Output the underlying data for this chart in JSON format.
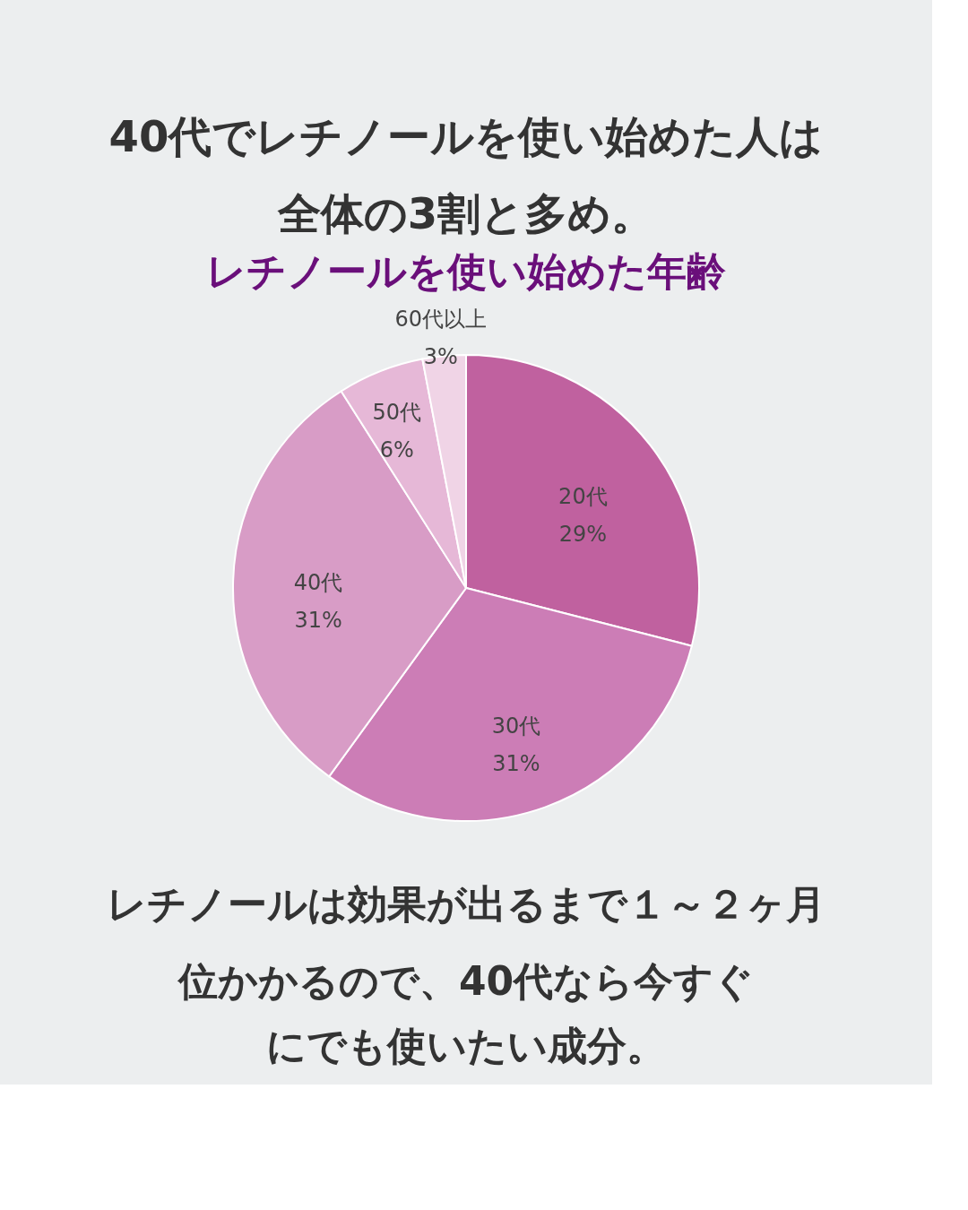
{
  "chart_data": {
    "type": "pie",
    "title": "40代でレチノールを使い始めた人は全体の3割と多め。",
    "subtitle": "レチノールを使い始めた年齢",
    "categories": [
      "20代",
      "30代",
      "40代",
      "50代",
      "60代以上"
    ],
    "values": [
      29,
      31,
      31,
      6,
      3
    ],
    "value_labels": [
      "29%",
      "31%",
      "31%",
      "6%",
      "3%"
    ],
    "colors": [
      "#c0619f",
      "#cc7db6",
      "#d89cc6",
      "#e6b8d7",
      "#f0d4e6"
    ],
    "annotations": [
      "レチノールは効果が出るまで１～２ヶ月",
      "位かかるので、40代なら今すぐ",
      "にでも使いたい成分。"
    ],
    "legend": false
  }
}
